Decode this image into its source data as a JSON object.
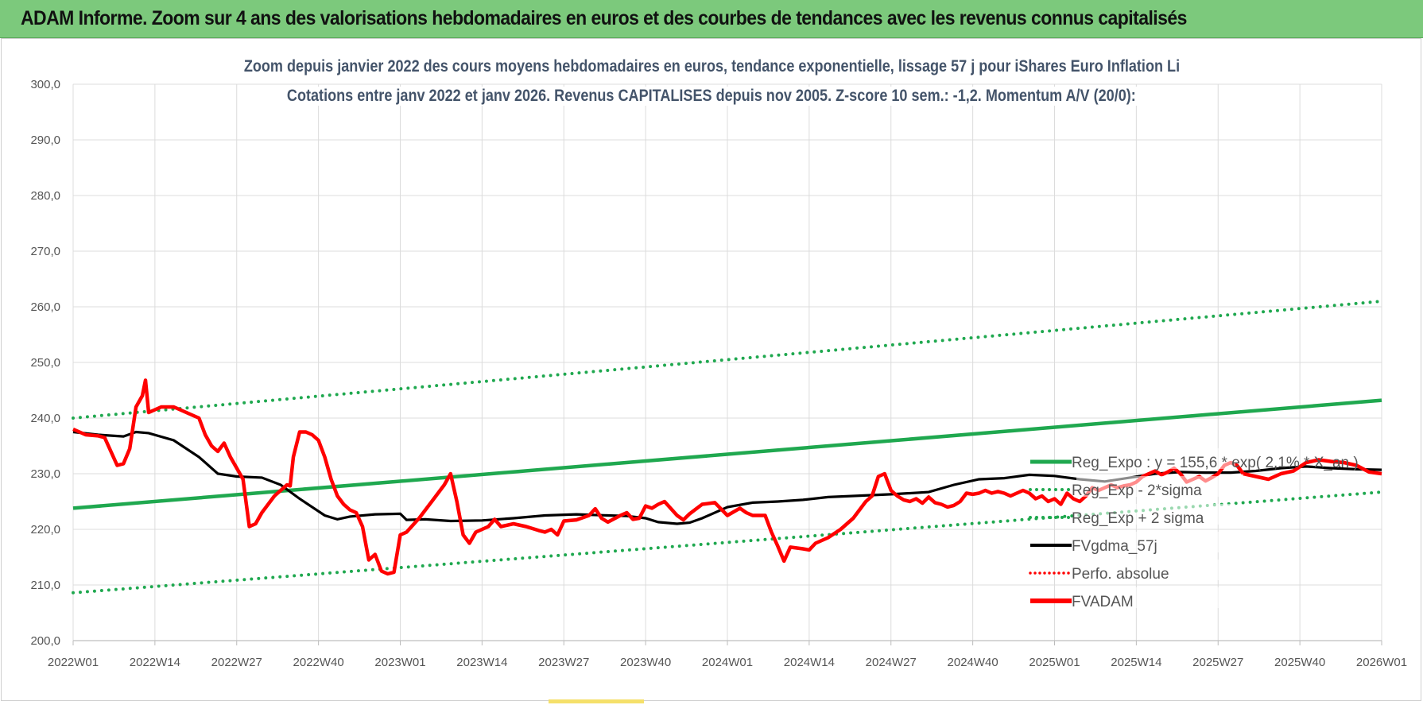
{
  "header": {
    "banner_title": "ADAM Informe. Zoom sur 4 ans des valorisations hebdomadaires en euros et des courbes de tendances avec les revenus connus capitalisés"
  },
  "colors": {
    "banner": "#7cc97c",
    "price": "#ff0000",
    "trend": "#1fa84f",
    "band": "#1fa84f",
    "moving_average": "#000000",
    "title_text": "#44546a"
  },
  "chart_data": {
    "type": "line",
    "title": "Zoom depuis janvier 2022 des cours moyens hebdomadaires en euros, tendance exponentielle, lissage 57 j pour iShares Euro Inflation Li",
    "subtitle": "Cotations entre janv 2022 et janv 2026. Revenus CAPITALISES depuis nov 2005. Z-score 10 sem.: -1,2. Momentum A/V (20/0):",
    "xlabel": "",
    "ylabel": "",
    "ylim": [
      200,
      300
    ],
    "yticks": [
      "200,0",
      "210,0",
      "220,0",
      "230,0",
      "240,0",
      "250,0",
      "260,0",
      "270,0",
      "280,0",
      "290,0",
      "300,0"
    ],
    "xticks": [
      "2022W01",
      "2022W14",
      "2022W27",
      "2022W40",
      "2023W01",
      "2023W14",
      "2023W27",
      "2023W40",
      "2024W01",
      "2024W14",
      "2024W27",
      "2024W40",
      "2025W01",
      "2025W14",
      "2025W27",
      "2025W40",
      "2026W01"
    ],
    "grid": true,
    "legend_position": "right-inside",
    "series": [
      {
        "name": "Reg_Expo : y = 155,6 * exp( 2,1% * X_an )",
        "style": "solid-thick",
        "points": [
          [
            0,
            223.8
          ],
          [
            208,
            243.2
          ]
        ]
      },
      {
        "name": "Reg_Exp - 2*sigma",
        "style": "dotted",
        "points": [
          [
            0,
            208.6
          ],
          [
            208,
            226.7
          ]
        ]
      },
      {
        "name": "Reg_Exp + 2 sigma",
        "style": "dotted",
        "points": [
          [
            0,
            240.0
          ],
          [
            208,
            261.0
          ]
        ]
      },
      {
        "name": "FVgdma_57j",
        "style": "solid-black",
        "points": [
          [
            0,
            237.5
          ],
          [
            4,
            237
          ],
          [
            8,
            236.7
          ],
          [
            10,
            237.5
          ],
          [
            12,
            237.3
          ],
          [
            16,
            236
          ],
          [
            20,
            233
          ],
          [
            23,
            230
          ],
          [
            26,
            229.5
          ],
          [
            30,
            229.3
          ],
          [
            33,
            228
          ],
          [
            36,
            225.5
          ],
          [
            40,
            222.5
          ],
          [
            42,
            221.8
          ],
          [
            44,
            222.3
          ],
          [
            48,
            222.7
          ],
          [
            52,
            222.8
          ],
          [
            53,
            221.7
          ],
          [
            56,
            221.8
          ],
          [
            60,
            221.5
          ],
          [
            65,
            221.6
          ],
          [
            70,
            222
          ],
          [
            75,
            222.5
          ],
          [
            80,
            222.7
          ],
          [
            85,
            222.5
          ],
          [
            88,
            222.4
          ],
          [
            91,
            222
          ],
          [
            93,
            221.3
          ],
          [
            96,
            221
          ],
          [
            98,
            221.2
          ],
          [
            100,
            222
          ],
          [
            104,
            224
          ],
          [
            108,
            224.8
          ],
          [
            112,
            225
          ],
          [
            116,
            225.3
          ],
          [
            120,
            225.8
          ],
          [
            124,
            226
          ],
          [
            130,
            226.3
          ],
          [
            136,
            226.7
          ],
          [
            140,
            228
          ],
          [
            144,
            229
          ],
          [
            148,
            229.2
          ],
          [
            152,
            229.8
          ],
          [
            156,
            229.6
          ],
          [
            160,
            229
          ],
          [
            164,
            228.6
          ],
          [
            168,
            229.3
          ],
          [
            172,
            230
          ],
          [
            176,
            230.3
          ],
          [
            180,
            230.2
          ],
          [
            184,
            230.2
          ],
          [
            188,
            230.5
          ],
          [
            192,
            231
          ],
          [
            196,
            231.3
          ],
          [
            200,
            231
          ],
          [
            204,
            230.8
          ],
          [
            208,
            230.7
          ]
        ]
      },
      {
        "name": "Perfo. absolue",
        "style": "dotted-red",
        "points": []
      },
      {
        "name": "FVADAM",
        "style": "solid-red-thick",
        "points": [
          [
            0,
            238
          ],
          [
            2,
            237
          ],
          [
            4,
            236.8
          ],
          [
            5,
            236.5
          ],
          [
            6,
            234
          ],
          [
            7,
            231.5
          ],
          [
            8,
            231.8
          ],
          [
            9,
            234.5
          ],
          [
            10,
            242
          ],
          [
            11,
            244
          ],
          [
            11.5,
            246.8
          ],
          [
            12,
            241
          ],
          [
            13,
            241.5
          ],
          [
            14,
            242
          ],
          [
            16,
            242
          ],
          [
            17,
            241.5
          ],
          [
            18,
            241
          ],
          [
            20,
            240
          ],
          [
            21,
            237
          ],
          [
            22,
            235
          ],
          [
            23,
            234
          ],
          [
            24,
            235.5
          ],
          [
            25,
            233
          ],
          [
            26,
            231
          ],
          [
            27,
            229
          ],
          [
            28,
            220.5
          ],
          [
            29,
            221
          ],
          [
            30,
            223
          ],
          [
            32,
            226
          ],
          [
            33,
            227
          ],
          [
            34,
            228
          ],
          [
            34.5,
            227.8
          ],
          [
            35,
            233
          ],
          [
            36,
            237.5
          ],
          [
            37,
            237.5
          ],
          [
            38,
            237
          ],
          [
            39,
            236
          ],
          [
            40,
            233
          ],
          [
            41,
            229
          ],
          [
            42,
            226
          ],
          [
            43,
            224.5
          ],
          [
            44,
            223.5
          ],
          [
            45,
            223
          ],
          [
            46,
            220.5
          ],
          [
            47,
            214.5
          ],
          [
            48,
            215.5
          ],
          [
            49,
            212.5
          ],
          [
            50,
            212
          ],
          [
            51,
            212.3
          ],
          [
            52,
            219
          ],
          [
            53,
            219.5
          ],
          [
            55,
            222
          ],
          [
            57,
            225
          ],
          [
            59,
            228
          ],
          [
            60,
            230
          ],
          [
            61,
            225
          ],
          [
            62,
            219
          ],
          [
            63,
            217.5
          ],
          [
            64,
            219.5
          ],
          [
            66,
            220.5
          ],
          [
            67,
            221.8
          ],
          [
            68,
            220.5
          ],
          [
            70,
            221
          ],
          [
            72,
            220.5
          ],
          [
            74,
            219.8
          ],
          [
            75,
            219.5
          ],
          [
            76,
            220
          ],
          [
            77,
            219
          ],
          [
            78,
            221.5
          ],
          [
            80,
            221.7
          ],
          [
            82,
            222.5
          ],
          [
            83,
            223.7
          ],
          [
            84,
            222
          ],
          [
            85,
            221.3
          ],
          [
            87,
            222.5
          ],
          [
            88,
            223
          ],
          [
            89,
            221.8
          ],
          [
            90,
            222
          ],
          [
            91,
            224.2
          ],
          [
            92,
            223.8
          ],
          [
            93,
            224.5
          ],
          [
            94,
            225
          ],
          [
            96,
            222.5
          ],
          [
            97,
            221.7
          ],
          [
            98,
            222.8
          ],
          [
            100,
            224.5
          ],
          [
            102,
            224.8
          ],
          [
            104,
            222.5
          ],
          [
            106,
            223.8
          ],
          [
            107,
            223
          ],
          [
            108,
            222.5
          ],
          [
            110,
            222.5
          ],
          [
            111,
            219.5
          ],
          [
            112,
            217
          ],
          [
            113,
            214.3
          ],
          [
            114,
            216.8
          ],
          [
            116,
            216.5
          ],
          [
            117,
            216.3
          ],
          [
            118,
            217.5
          ],
          [
            120,
            218.5
          ],
          [
            122,
            220
          ],
          [
            124,
            222
          ],
          [
            126,
            225
          ],
          [
            127,
            226
          ],
          [
            128,
            229.5
          ],
          [
            129,
            230
          ],
          [
            130,
            227
          ],
          [
            131,
            226
          ],
          [
            132,
            225.3
          ],
          [
            133,
            225
          ],
          [
            134,
            225.5
          ],
          [
            135,
            224.7
          ],
          [
            136,
            225.8
          ],
          [
            137,
            224.8
          ],
          [
            138,
            224.5
          ],
          [
            139,
            224
          ],
          [
            140,
            224.3
          ],
          [
            141,
            225
          ],
          [
            142,
            226.5
          ],
          [
            143,
            226.3
          ],
          [
            144,
            226.5
          ],
          [
            145,
            227
          ],
          [
            146,
            226.5
          ],
          [
            147,
            226.8
          ],
          [
            148,
            226.5
          ],
          [
            149,
            226
          ],
          [
            150,
            226.5
          ],
          [
            151,
            227
          ],
          [
            152,
            226.5
          ],
          [
            153,
            225.5
          ],
          [
            154,
            226
          ],
          [
            155,
            225
          ],
          [
            156,
            225.5
          ],
          [
            157,
            224.5
          ],
          [
            158,
            226.5
          ],
          [
            159,
            225.5
          ],
          [
            160,
            225
          ],
          [
            161,
            226
          ],
          [
            162,
            227.5
          ],
          [
            163,
            227
          ],
          [
            164,
            227.5
          ],
          [
            165,
            228
          ],
          [
            166,
            227.5
          ],
          [
            167,
            227.8
          ],
          [
            168,
            228
          ],
          [
            169,
            228.5
          ],
          [
            170,
            229.5
          ],
          [
            171,
            230
          ],
          [
            172,
            230.5
          ],
          [
            173,
            229.8
          ],
          [
            174,
            230.3
          ],
          [
            175,
            231
          ],
          [
            176,
            230
          ],
          [
            177,
            228.5
          ],
          [
            178,
            229
          ],
          [
            179,
            229.5
          ],
          [
            180,
            228.7
          ],
          [
            181,
            229.3
          ],
          [
            182,
            230
          ],
          [
            183,
            231.5
          ],
          [
            184,
            232
          ],
          [
            185,
            231.5
          ],
          [
            186,
            230
          ]
        ]
      }
    ],
    "legend": [
      {
        "label": "Reg_Expo : y = 155,6 * exp( 2,1% * X_an )",
        "style": "solid-green"
      },
      {
        "label": "Reg_Exp - 2*sigma",
        "style": "dotted-green"
      },
      {
        "label": "Reg_Exp + 2 sigma",
        "style": "dotted-green"
      },
      {
        "label": "FVgdma_57j",
        "style": "solid-black"
      },
      {
        "label": "Perfo. absolue",
        "style": "dotted-red"
      },
      {
        "label": "FVADAM",
        "style": "solid-red"
      }
    ],
    "price_tail": [
      [
        186,
        230
      ],
      [
        188,
        229.5
      ],
      [
        190,
        229
      ],
      [
        192,
        230
      ],
      [
        194,
        230.5
      ],
      [
        196,
        232
      ],
      [
        198,
        232.5
      ],
      [
        200,
        232.2
      ],
      [
        202,
        232
      ],
      [
        204,
        231.5
      ],
      [
        206,
        230.3
      ],
      [
        208,
        230
      ]
    ]
  }
}
